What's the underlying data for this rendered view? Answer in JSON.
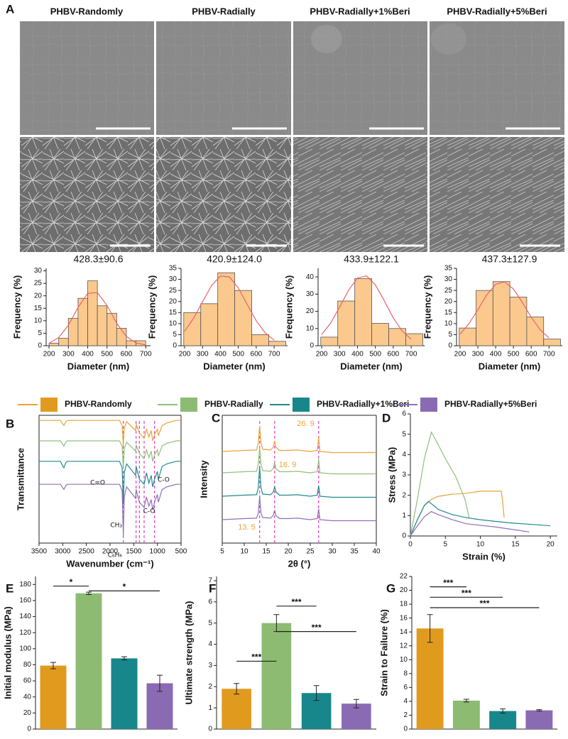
{
  "panel_labels": [
    "A",
    "B",
    "C",
    "D",
    "E",
    "F",
    "G"
  ],
  "sem_titles": [
    "PHBV-Randomly",
    "PHBV-Radially",
    "PHBV-Radially+1%Beri",
    "PHBV-Radially+5%Beri"
  ],
  "legend": [
    {
      "name": "PHBV-Randomly",
      "line_color": "#e8a33a",
      "color": "#e09b1f"
    },
    {
      "name": "PHBV-Radially",
      "line_color": "#8fc07a",
      "color": "#8dbb72"
    },
    {
      "name": "PHBV-Radially+1%Beri",
      "line_color": "#1f8a8f",
      "color": "#17878c"
    },
    {
      "name": "PHBV-Radially+5%Beri",
      "line_color": "#8f70b8",
      "color": "#8a6bb3"
    }
  ],
  "chart_data": [
    {
      "type": "histogram",
      "title": "428.3±90.6",
      "xlabel": "Diameter (nm)",
      "ylabel": "Frequency (%)",
      "bins": [
        200,
        250,
        300,
        350,
        400,
        450,
        500,
        550,
        600,
        650,
        700
      ],
      "counts": [
        1,
        3,
        11,
        19,
        26,
        16,
        13,
        7,
        2,
        2
      ],
      "color": "#fbc98e",
      "xlim": [
        185,
        725
      ],
      "xticks": [
        200,
        300,
        400,
        500,
        600,
        700
      ],
      "ylim": [
        0,
        31
      ],
      "yticks": [
        0,
        5,
        10,
        15,
        20,
        25,
        30
      ],
      "fit": {
        "color": "#e8646a",
        "x": [
          200,
          250,
          300,
          350,
          400,
          450,
          500,
          550,
          600,
          650,
          700
        ],
        "values": [
          1.0,
          3.3,
          8.2,
          15.3,
          21.0,
          21.3,
          16.1,
          9.0,
          3.7,
          1.1,
          0.3
        ]
      }
    },
    {
      "type": "histogram",
      "title": "420.9±124.0",
      "xlabel": "Diameter (nm)",
      "ylabel": "Frequency (%)",
      "bins": [
        195,
        290,
        385,
        480,
        575,
        670,
        765
      ],
      "counts": [
        15,
        19,
        33,
        25,
        5,
        2
      ],
      "color": "#fbc98e",
      "xlim": [
        180,
        775
      ],
      "xticks": [
        200,
        300,
        400,
        500,
        600,
        700
      ],
      "ylim": [
        0,
        35
      ],
      "yticks": [
        0,
        5,
        10,
        15,
        20,
        25,
        30,
        35
      ],
      "fit": {
        "color": "#e8646a",
        "x": [
          200,
          250,
          300,
          350,
          400,
          450,
          500,
          550,
          600,
          650,
          700
        ],
        "values": [
          6.5,
          12.4,
          19.9,
          27.2,
          31.5,
          31.1,
          26.1,
          18.6,
          11.3,
          5.8,
          2.5
        ]
      }
    },
    {
      "type": "histogram",
      "title": "433.9±122.1",
      "xlabel": "Diameter (nm)",
      "ylabel": "Frequency (%)",
      "bins": [
        195,
        290,
        385,
        480,
        575,
        670,
        765
      ],
      "counts": [
        5,
        26,
        39,
        13,
        10,
        7
      ],
      "color": "#fbc98e",
      "xlim": [
        180,
        775
      ],
      "xticks": [
        200,
        300,
        400,
        500,
        600,
        700
      ],
      "ylim": [
        0,
        45
      ],
      "yticks": [
        0,
        10,
        20,
        30,
        40
      ],
      "fit": {
        "color": "#e8646a",
        "x": [
          200,
          250,
          300,
          350,
          400,
          450,
          500,
          550,
          600,
          650,
          700
        ],
        "values": [
          6.5,
          13.1,
          22.4,
          32.3,
          39.4,
          40.6,
          35.4,
          26.1,
          16.2,
          8.5,
          3.8
        ]
      }
    },
    {
      "type": "histogram",
      "title": "437.3±127.9",
      "xlabel": "Diameter (nm)",
      "ylabel": "Frequency (%)",
      "bins": [
        195,
        290,
        385,
        480,
        575,
        670,
        765
      ],
      "counts": [
        8,
        25,
        29,
        22,
        13,
        3
      ],
      "color": "#fbc98e",
      "xlim": [
        180,
        775
      ],
      "xticks": [
        200,
        300,
        400,
        500,
        600,
        700
      ],
      "ylim": [
        0,
        35
      ],
      "yticks": [
        0,
        5,
        10,
        15,
        20,
        25,
        30,
        35
      ],
      "fit": {
        "color": "#e8646a",
        "x": [
          200,
          250,
          300,
          350,
          400,
          450,
          500,
          550,
          600,
          650,
          700
        ],
        "values": [
          5.2,
          10.0,
          16.3,
          23.0,
          27.8,
          28.9,
          25.7,
          19.6,
          12.9,
          7.3,
          3.5
        ]
      }
    },
    {
      "type": "line",
      "xlabel": "Wavenumber (cm⁻¹)",
      "ylabel": "Transmittance",
      "xlim": [
        3500,
        500
      ],
      "xticks": [
        3500,
        3000,
        2500,
        2000,
        1500,
        1000,
        500
      ],
      "ylim": [
        0,
        10
      ],
      "vlines": [
        1720,
        1450,
        1380,
        1280,
        1060
      ],
      "vline_color": "#e040c0",
      "annotations": [
        "C=O",
        "C-O",
        "C-O",
        "CH₃",
        "C₆H₆"
      ],
      "x": [
        3500,
        3050,
        2995,
        2975,
        2935,
        2900,
        1800,
        1745,
        1720,
        1700,
        1650,
        1460,
        1450,
        1380,
        1280,
        1230,
        1180,
        1130,
        1100,
        1060,
        1000,
        980,
        900,
        800,
        700,
        600,
        500
      ],
      "series": [
        {
          "color": "#e8a33a",
          "values": [
            9.6,
            9.6,
            9.3,
            9.2,
            9.5,
            9.6,
            9.6,
            9.2,
            7.6,
            9.0,
            9.5,
            8.8,
            9.3,
            8.6,
            8.2,
            8.9,
            8.3,
            8.8,
            8.0,
            8.5,
            8.9,
            8.4,
            9.2,
            9.4,
            9.5,
            9.6,
            9.6
          ]
        },
        {
          "color": "#8fc07a",
          "values": [
            8.0,
            8.0,
            7.7,
            7.6,
            7.9,
            8.0,
            8.0,
            7.6,
            5.8,
            7.4,
            7.9,
            7.2,
            7.7,
            7.0,
            6.6,
            7.3,
            6.7,
            7.2,
            6.4,
            6.9,
            7.3,
            6.8,
            7.6,
            7.8,
            7.9,
            8.0,
            8.0
          ]
        },
        {
          "color": "#1f8a8f",
          "values": [
            6.4,
            6.4,
            6.0,
            5.9,
            6.3,
            6.4,
            6.4,
            5.9,
            3.0,
            5.5,
            6.2,
            5.3,
            6.0,
            5.0,
            4.6,
            5.5,
            4.7,
            5.3,
            4.4,
            5.0,
            5.6,
            5.0,
            6.0,
            6.2,
            6.3,
            6.4,
            6.4
          ]
        },
        {
          "color": "#8f70b8",
          "values": [
            4.6,
            4.6,
            4.3,
            4.2,
            4.5,
            4.6,
            4.6,
            4.1,
            0.6,
            3.6,
            4.4,
            3.5,
            4.2,
            3.2,
            2.8,
            3.6,
            2.9,
            3.4,
            2.6,
            3.2,
            3.8,
            3.2,
            4.2,
            4.4,
            4.5,
            4.6,
            4.6
          ]
        }
      ]
    },
    {
      "type": "line",
      "xlabel": "2θ (°)",
      "ylabel": "Intensity",
      "xlim": [
        5,
        40
      ],
      "xticks": [
        5,
        10,
        15,
        20,
        25,
        30,
        35,
        40
      ],
      "ylim": [
        0,
        6
      ],
      "vlines": [
        {
          "value": 13.5,
          "label": "13. 5"
        },
        {
          "value": 16.9,
          "label": "16. 9"
        },
        {
          "value": 26.9,
          "label": "26. 9"
        }
      ],
      "vline_color": "#e040c0",
      "vline_label_color": "#e8a33a",
      "x": [
        5,
        10,
        12.8,
        13.2,
        13.5,
        13.8,
        14.2,
        16,
        16.6,
        16.9,
        17.2,
        18,
        20,
        22,
        25,
        26.6,
        26.9,
        27.2,
        30,
        35,
        40
      ],
      "series": [
        {
          "color": "#e8a33a",
          "values": [
            4.3,
            4.35,
            4.37,
            4.7,
            5.5,
            4.7,
            4.4,
            4.37,
            4.5,
            4.8,
            4.5,
            4.35,
            4.35,
            4.37,
            4.3,
            4.35,
            4.95,
            4.3,
            4.25,
            4.25,
            4.25
          ]
        },
        {
          "color": "#8fc07a",
          "values": [
            3.3,
            3.35,
            3.37,
            3.7,
            4.5,
            3.7,
            3.4,
            3.37,
            3.5,
            3.8,
            3.5,
            3.35,
            3.35,
            3.37,
            3.3,
            3.35,
            3.95,
            3.3,
            3.25,
            3.25,
            3.25
          ]
        },
        {
          "color": "#1f8a8f",
          "values": [
            2.2,
            2.25,
            2.27,
            2.6,
            3.6,
            2.6,
            2.3,
            2.27,
            2.4,
            2.65,
            2.4,
            2.25,
            2.25,
            2.27,
            2.2,
            2.25,
            2.7,
            2.2,
            2.15,
            2.15,
            2.15
          ]
        },
        {
          "color": "#8f70b8",
          "values": [
            1.1,
            1.15,
            1.17,
            1.4,
            2.2,
            1.4,
            1.2,
            1.17,
            1.3,
            1.55,
            1.3,
            1.15,
            1.15,
            1.17,
            1.1,
            1.15,
            1.6,
            1.1,
            1.05,
            1.05,
            1.05
          ]
        }
      ]
    },
    {
      "type": "line",
      "xlabel": "Strain (%)",
      "ylabel": "Stress (MPa)",
      "xlim": [
        0,
        21
      ],
      "xticks": [
        0,
        5,
        10,
        15,
        20
      ],
      "ylim": [
        0,
        6
      ],
      "yticks": [
        0,
        1,
        2,
        3,
        4,
        5,
        6
      ],
      "series": [
        {
          "color": "#e8a33a",
          "x": [
            0,
            1,
            2,
            3,
            4,
            6,
            8,
            10,
            12,
            13,
            13.2,
            13.4
          ],
          "values": [
            0,
            0.8,
            1.5,
            1.8,
            1.95,
            2.05,
            2.1,
            2.2,
            2.2,
            2.2,
            1.6,
            0.9
          ]
        },
        {
          "color": "#8fc07a",
          "x": [
            0,
            1,
            2,
            3,
            3.5,
            5,
            6.5,
            7.8,
            8.2,
            8.4
          ],
          "values": [
            0,
            1.8,
            3.8,
            5.1,
            4.8,
            3.8,
            2.9,
            1.8,
            1.2,
            0.9
          ]
        },
        {
          "color": "#1f8a8f",
          "x": [
            0,
            1,
            2,
            2.6,
            4,
            6,
            8,
            10,
            14,
            18,
            20
          ],
          "values": [
            0,
            0.8,
            1.5,
            1.7,
            1.3,
            1.05,
            0.9,
            0.8,
            0.65,
            0.55,
            0.5
          ]
        },
        {
          "color": "#8f70b8",
          "x": [
            0,
            1,
            2,
            3,
            4,
            6,
            8,
            12,
            15,
            17
          ],
          "values": [
            0,
            0.5,
            0.95,
            1.2,
            1.05,
            0.8,
            0.6,
            0.45,
            0.3,
            0.2
          ]
        }
      ]
    },
    {
      "type": "bar",
      "ylabel": "Initial modulus (MPa)",
      "values": [
        79,
        169,
        88,
        57
      ],
      "errors": [
        4,
        1.5,
        2,
        10
      ],
      "colors": [
        "#e09b1f",
        "#8dbb72",
        "#17878c",
        "#8a6bb3"
      ],
      "ylim": [
        0,
        190
      ],
      "yticks": [
        0,
        20,
        40,
        60,
        80,
        100,
        120,
        140,
        160,
        180
      ],
      "brackets": [
        {
          "from": 0,
          "to": 1,
          "y": 178,
          "label": "*"
        },
        {
          "from": 1,
          "to": 3,
          "y": 172,
          "label": "*"
        }
      ]
    },
    {
      "type": "bar",
      "ylabel": "Ultimate strength (MPa)",
      "values": [
        1.9,
        5.0,
        1.7,
        1.2
      ],
      "errors": [
        0.25,
        0.4,
        0.35,
        0.2
      ],
      "colors": [
        "#e09b1f",
        "#8dbb72",
        "#17878c",
        "#8a6bb3"
      ],
      "ylim": [
        0,
        7.2
      ],
      "yticks": [
        0,
        1,
        2,
        3,
        4,
        5,
        6,
        7
      ],
      "brackets": [
        {
          "from": 0,
          "to": 1,
          "y": 3.2,
          "label": "***"
        },
        {
          "from": 1,
          "to": 2,
          "y": 5.8,
          "label": "***"
        },
        {
          "from": 1,
          "to": 3,
          "y": 4.6,
          "label": "***"
        }
      ]
    },
    {
      "type": "bar",
      "ylabel": "Strain to Failure (%)",
      "values": [
        14.5,
        4.1,
        2.6,
        2.7
      ],
      "errors": [
        2.0,
        0.2,
        0.3,
        0.1
      ],
      "colors": [
        "#e09b1f",
        "#8dbb72",
        "#17878c",
        "#8a6bb3"
      ],
      "ylim": [
        0,
        22
      ],
      "yticks": [
        0,
        2,
        4,
        6,
        8,
        10,
        12,
        14,
        16,
        18,
        20,
        22
      ],
      "brackets": [
        {
          "from": 0,
          "to": 1,
          "y": 20.5,
          "label": "***"
        },
        {
          "from": 0,
          "to": 2,
          "y": 19.0,
          "label": "***"
        },
        {
          "from": 0,
          "to": 3,
          "y": 17.5,
          "label": "***"
        }
      ]
    }
  ]
}
